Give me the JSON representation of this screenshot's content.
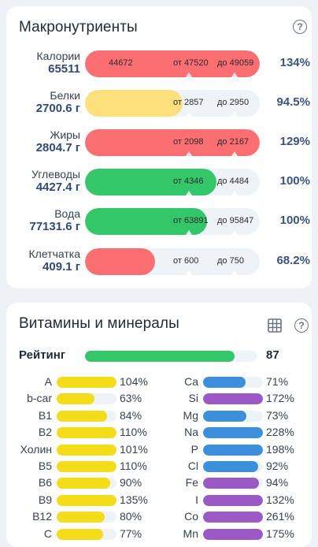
{
  "macros": {
    "title": "Макронутриенты",
    "help_icon": "question-circle-icon",
    "rows": [
      {
        "label": "Калории",
        "value": "65511",
        "fill_percent": 100,
        "color": "#fb6f72",
        "left_text": "44672",
        "range_from": "от 47520",
        "range_to": "до 49059",
        "percent": "134%"
      },
      {
        "label": "Белки",
        "value": "2700.6 г",
        "fill_percent": 56,
        "color": "#fde07b",
        "left_text": "",
        "range_from": "от 2857",
        "range_to": "до 2950",
        "percent": "94.5%"
      },
      {
        "label": "Жиры",
        "value": "2804.7 г",
        "fill_percent": 100,
        "color": "#fb6f72",
        "left_text": "",
        "range_from": "от 2098",
        "range_to": "до 2167",
        "percent": "129%"
      },
      {
        "label": "Углеводы",
        "value": "4427.4 г",
        "fill_percent": 75,
        "color": "#34c76a",
        "left_text": "",
        "range_from": "от 4346",
        "range_to": "до 4484",
        "percent": "100%"
      },
      {
        "label": "Вода",
        "value": "77131.6 г",
        "fill_percent": 70,
        "color": "#34c76a",
        "left_text": "",
        "range_from": "от 63891",
        "range_to": "до 95847",
        "percent": "100%"
      },
      {
        "label": "Клетчатка",
        "value": "409.1 г",
        "fill_percent": 40,
        "color": "#fb6f72",
        "left_text": "",
        "range_from": "от 600",
        "range_to": "до 750",
        "percent": "68.2%"
      }
    ]
  },
  "vitamins": {
    "title": "Витамины и минералы",
    "table_icon": "table-icon",
    "help_icon": "question-circle-icon",
    "rating_label": "Рейтинг",
    "rating_value": "87",
    "rating_fill": 87,
    "left": [
      {
        "name": "A",
        "percent": "104%",
        "fill": 100,
        "color": "#f3dc18"
      },
      {
        "name": "b-car",
        "percent": "63%",
        "fill": 63,
        "color": "#f3dc18"
      },
      {
        "name": "B1",
        "percent": "84%",
        "fill": 84,
        "color": "#f3dc18"
      },
      {
        "name": "B2",
        "percent": "110%",
        "fill": 100,
        "color": "#f3dc18"
      },
      {
        "name": "Холин",
        "percent": "101%",
        "fill": 100,
        "color": "#f3dc18"
      },
      {
        "name": "B5",
        "percent": "110%",
        "fill": 100,
        "color": "#f3dc18"
      },
      {
        "name": "B6",
        "percent": "90%",
        "fill": 90,
        "color": "#f3dc18"
      },
      {
        "name": "B9",
        "percent": "135%",
        "fill": 100,
        "color": "#f3dc18"
      },
      {
        "name": "B12",
        "percent": "80%",
        "fill": 80,
        "color": "#f3dc18"
      },
      {
        "name": "C",
        "percent": "77%",
        "fill": 77,
        "color": "#f3dc18"
      }
    ],
    "right": [
      {
        "name": "Ca",
        "percent": "71%",
        "fill": 71,
        "color": "#3b8fdb"
      },
      {
        "name": "Si",
        "percent": "172%",
        "fill": 100,
        "color": "#9b59c4"
      },
      {
        "name": "Mg",
        "percent": "73%",
        "fill": 73,
        "color": "#3b8fdb"
      },
      {
        "name": "Na",
        "percent": "228%",
        "fill": 100,
        "color": "#3b8fdb"
      },
      {
        "name": "P",
        "percent": "198%",
        "fill": 100,
        "color": "#3b8fdb"
      },
      {
        "name": "Cl",
        "percent": "92%",
        "fill": 92,
        "color": "#3b8fdb"
      },
      {
        "name": "Fe",
        "percent": "94%",
        "fill": 94,
        "color": "#9b59c4"
      },
      {
        "name": "I",
        "percent": "132%",
        "fill": 100,
        "color": "#9b59c4"
      },
      {
        "name": "Co",
        "percent": "261%",
        "fill": 100,
        "color": "#9b59c4"
      },
      {
        "name": "Mn",
        "percent": "175%",
        "fill": 100,
        "color": "#9b59c4"
      }
    ]
  }
}
